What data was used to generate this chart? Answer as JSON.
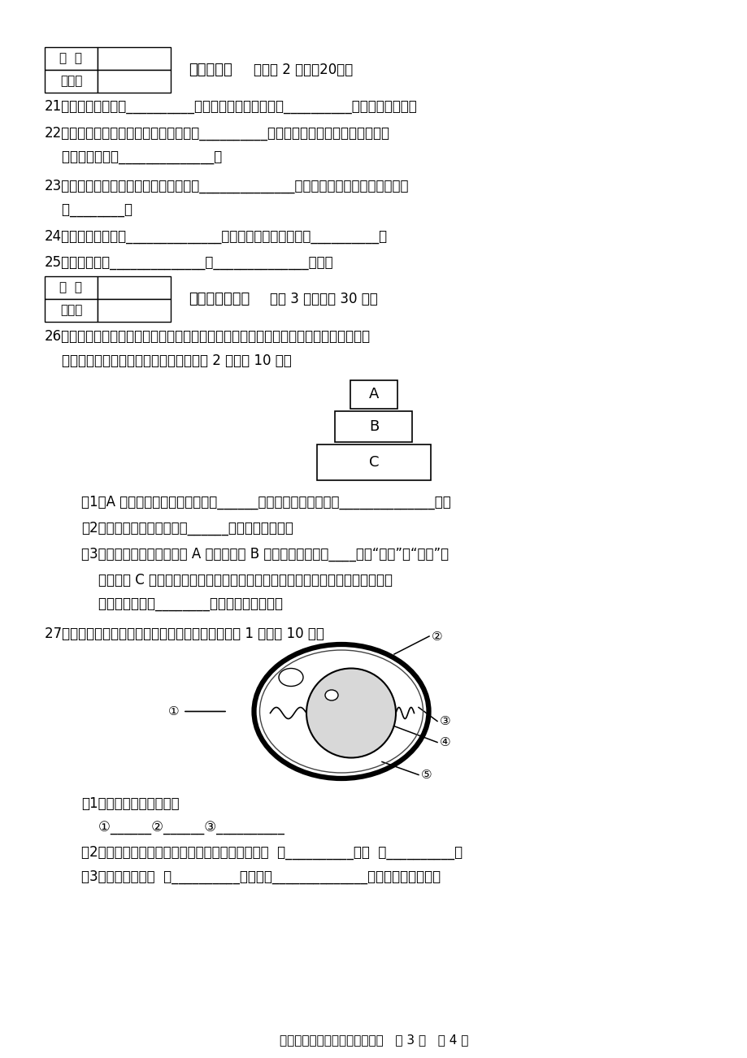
{
  "bg_color": "#ffffff",
  "text_color": "#000000",
  "page_width": 9.2,
  "page_height": 13.02,
  "dpi": 100,
  "section2_bold": "二、填空题",
  "section2_rest": "（每空 2 分，八20分）",
  "section3_bold": "三、识图作答题",
  "section3_rest": "（八 3 小题，八 30 分）",
  "footer_text": "八年级生物期末检测（北师版）   第 3 页   八 4 页",
  "table_label1": "得  分",
  "table_label2": "评卷人",
  "q21": "21．骨密质多分布在__________和骨骨干端的表面，结构__________坚硬，轻而坚实。",
  "q22_1": "22．研究者对研究对象施加了不同程度的__________，然后再观察研究动物的行为，这",
  "q22_2": "    种研究方法属于______________。",
  "q23_1": "23．抗生素不仅可以用来防治人类的某些______________，而且可以用来促进家禽和家畜",
  "q23_2": "    的________。",
  "q24": "24．新生命的孕育从______________开始，人类的受精发生在__________。",
  "q25": "25．相对性状有______________和______________之分。",
  "q26_intro1": "26．某草原生态系统中草、兔、鹰三种生物构成一条食物链。下图是这三种生物数量关系",
  "q26_intro2": "    的示意图。请分析回答下列问题：（每空 2 分，八 10 分）",
  "q26_1": "（1）A 代表的是上述三种生物中的______，它在生态系统中属于______________者。",
  "q26_2": "（2）该生态系统的生产者是______（填图中代号）。",
  "q26_3_1": "（3）就该食物链来看，如果 A 突然消失则 B 的数量在短期内将____（填“增多”或“减少”）",
  "q26_3_2": "    进而影响 C 的数量。可见，生活在一定自然区域的各种生物之间，通过食物链和",
  "q26_3_3": "    食物网形成相互________又相互制约的关系。",
  "q27_intro": "27．下图是鸡卵的结构图，请据图回答问题：（每空 1 分，八 10 分）",
  "q27_1": "（1）写出标号结构名称。",
  "q27_2": "    ①______②______③__________",
  "q27_3": "（2）图中能为胚胎发育提供营养和水分的结构是（  ）__________和（  ）__________。",
  "q27_4": "（3）图中的结构（  ）__________，其内含______________，将来发育成雏鸡。"
}
